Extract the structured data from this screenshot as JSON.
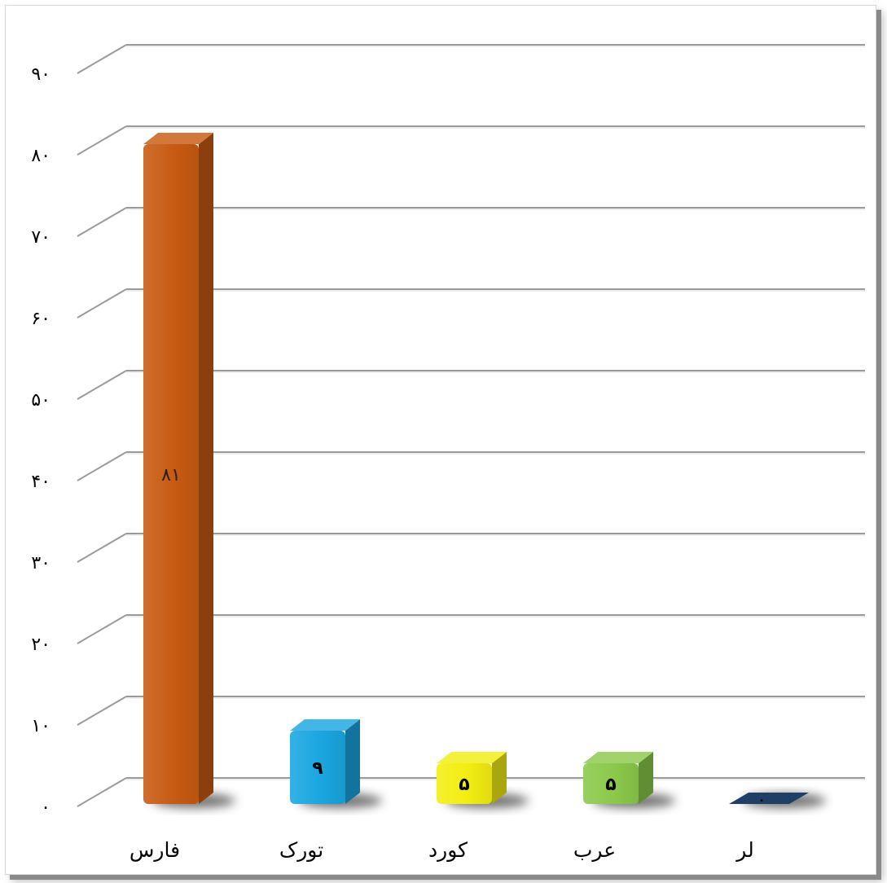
{
  "chart_data": {
    "type": "bar",
    "title": "",
    "xlabel": "",
    "ylabel": "",
    "ylim": [
      0,
      90
    ],
    "grid": true,
    "legend": "none",
    "y_ticks": [
      {
        "value": 0,
        "label": "٠"
      },
      {
        "value": 10,
        "label": "١٠"
      },
      {
        "value": 20,
        "label": "٢٠"
      },
      {
        "value": 30,
        "label": "٣٠"
      },
      {
        "value": 40,
        "label": "۴٠"
      },
      {
        "value": 50,
        "label": "۵٠"
      },
      {
        "value": 60,
        "label": "۶٠"
      },
      {
        "value": 70,
        "label": "٧٠"
      },
      {
        "value": 80,
        "label": "٨٠"
      },
      {
        "value": 90,
        "label": "٩٠"
      }
    ],
    "categories": [
      "فارس",
      "تورک",
      "کورد",
      "عرب",
      "لر"
    ],
    "values": [
      81,
      9,
      5,
      5,
      0
    ],
    "data_labels": [
      "٨١",
      "٩",
      "۵",
      "۵",
      "٠"
    ],
    "colors": [
      "#c85a12",
      "#1aa6e0",
      "#f2ee12",
      "#8bc94a",
      "#1f3f66"
    ],
    "data_label_colors": [
      "#222222",
      "#000000",
      "#000000",
      "#000000",
      "#000000"
    ]
  }
}
